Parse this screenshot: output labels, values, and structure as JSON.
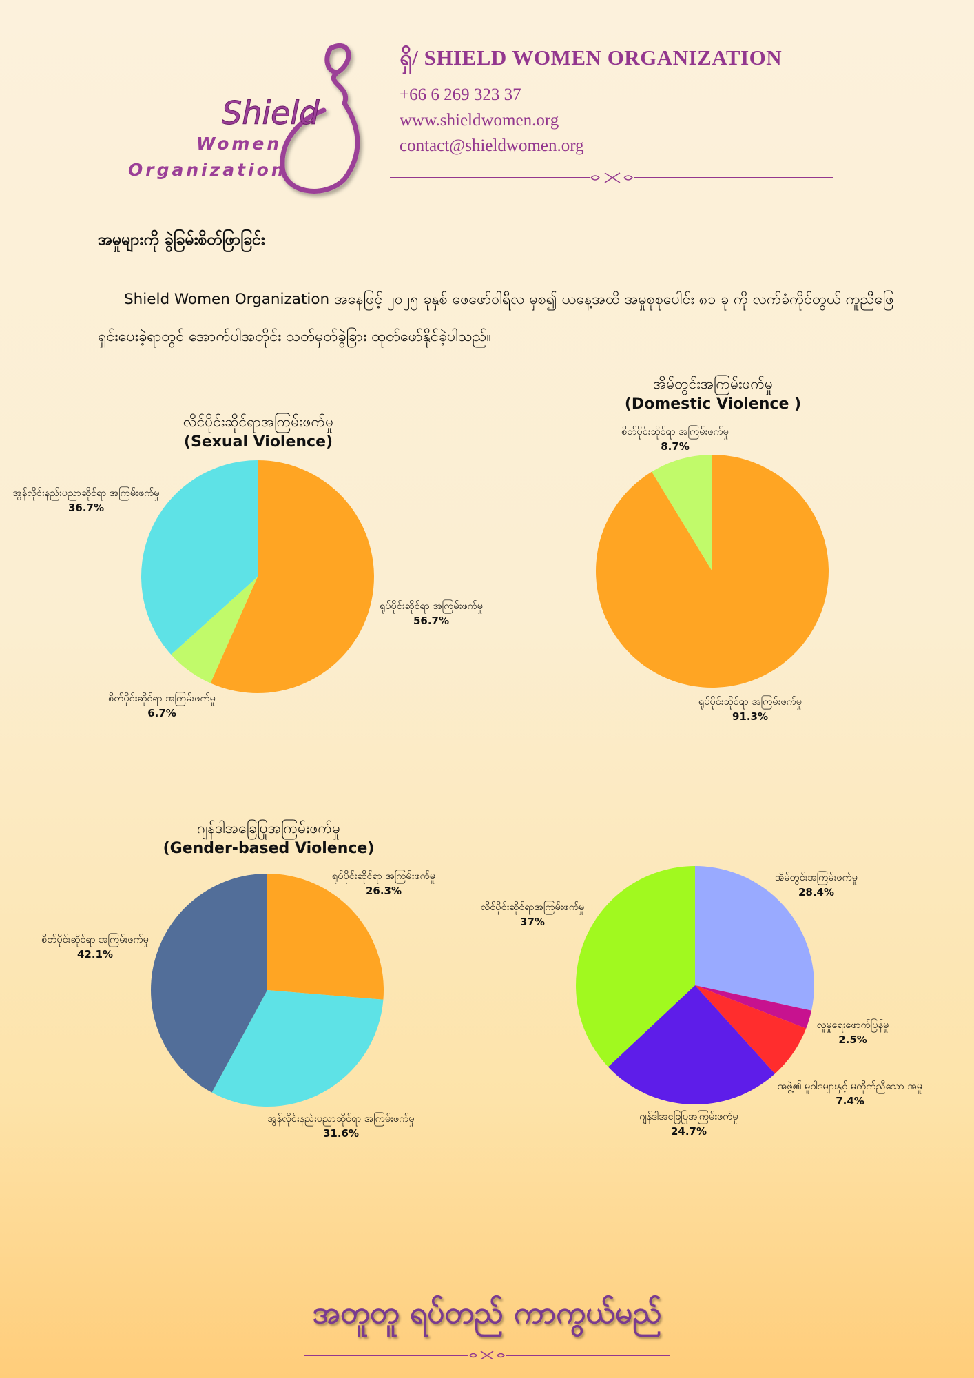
{
  "header": {
    "logo": {
      "word": "Shield",
      "line1": "Women",
      "line2": "Organization"
    },
    "org_name": "ရှိ/ SHIELD WOMEN ORGANIZATION",
    "phone": "+66 6 269 323 37",
    "website": "www.shieldwomen.org",
    "email": "contact@shieldwomen.org"
  },
  "section_heading": "အမှုများကို ခွဲခြမ်းစိတ်ဖြာခြင်း",
  "intro": "Shield Women Organization အနေဖြင့် ၂၀၂၅ ခုနှစ် ဖေဖော်ဝါရီလ မှစ၍ ယနေ့အထိ အမှုစုစုပေါင်း ၈၁ ခု ကို လက်ခံကိုင်တွယ် ကူညီဖြေရှင်းပေးခဲ့ရာတွင် အောက်ပါအတိုင်း သတ်မှတ်ခွဲခြား ထုတ်ဖော်နိုင်ခဲ့ပါသည်။",
  "colors": {
    "accent": "#93378e",
    "orange": "#ffa523",
    "cyan": "#5ee2e6",
    "lime": "#c1fa6a",
    "slate": "#526e99",
    "periwinkle": "#99aaff",
    "magenta": "#c7128f",
    "red": "#ff2d2d",
    "violet": "#5e1de9",
    "chartreuse": "#a1f91f"
  },
  "chart_data": [
    {
      "type": "pie",
      "title": "လိင်ပိုင်းဆိုင်ရာအကြမ်းဖက်မှု",
      "subtitle": "(Sexual Violence)",
      "slices": [
        {
          "label": "ရုပ်ပိုင်းဆိုင်ရာ အကြမ်းဖက်မှု",
          "value": 56.7,
          "display": "56.7%",
          "color": "#ffa523"
        },
        {
          "label": "စိတ်ပိုင်းဆိုင်ရာ အကြမ်းဖက်မှု",
          "value": 6.7,
          "display": "6.7%",
          "color": "#c1fa6a"
        },
        {
          "label": "အွန်လိုင်းနည်းပညာဆိုင်ရာ အကြမ်းဖက်မှု",
          "value": 36.7,
          "display": "36.7%",
          "color": "#5ee2e6"
        }
      ]
    },
    {
      "type": "pie",
      "title": "အိမ်တွင်းအကြမ်းဖက်မှု",
      "subtitle": "(Domestic Violence )",
      "slices": [
        {
          "label": "ရုပ်ပိုင်းဆိုင်ရာ အကြမ်းဖက်မှု",
          "value": 91.3,
          "display": "91.3%",
          "color": "#ffa523"
        },
        {
          "label": "စိတ်ပိုင်းဆိုင်ရာ အကြမ်းဖက်မှု",
          "value": 8.7,
          "display": "8.7%",
          "color": "#c1fa6a"
        }
      ]
    },
    {
      "type": "pie",
      "title": "ဂျန်ဒါအခြေပြုအကြမ်းဖက်မှု",
      "subtitle": "(Gender-based Violence)",
      "slices": [
        {
          "label": "ရုပ်ပိုင်းဆိုင်ရာ အကြမ်းဖက်မှု",
          "value": 26.3,
          "display": "26.3%",
          "color": "#ffa523"
        },
        {
          "label": "အွန်လိုင်းနည်းပညာဆိုင်ရာ အကြမ်းဖက်မှု",
          "value": 31.6,
          "display": "31.6%",
          "color": "#5ee2e6"
        },
        {
          "label": "စိတ်ပိုင်းဆိုင်ရာ အကြမ်းဖက်မှု",
          "value": 42.1,
          "display": "42.1%",
          "color": "#526e99"
        }
      ]
    },
    {
      "type": "pie",
      "title": "",
      "subtitle": "",
      "slices": [
        {
          "label": "အိမ်တွင်းအကြမ်းဖက်မှု",
          "value": 28.4,
          "display": "28.4%",
          "color": "#99aaff"
        },
        {
          "label": "လူမှုရေးဖောက်ပြန်မှု",
          "value": 2.5,
          "display": "2.5%",
          "color": "#c7128f"
        },
        {
          "label": "အဖွဲ့၏ မူဝါဒများနှင့် မကိုက်ညီသော အမှု",
          "value": 7.4,
          "display": "7.4%",
          "color": "#ff2d2d"
        },
        {
          "label": "ဂျန်ဒါအခြေပြုအကြမ်းဖက်မှု",
          "value": 24.7,
          "display": "24.7%",
          "color": "#5e1de9"
        },
        {
          "label": "လိင်ပိုင်းဆိုင်ရာအကြမ်းဖက်မှု",
          "value": 37,
          "display": "37%",
          "color": "#a1f91f"
        }
      ]
    }
  ],
  "footer": {
    "slogan": "အတူတူ ရပ်တည် ကာကွယ်မည်"
  }
}
